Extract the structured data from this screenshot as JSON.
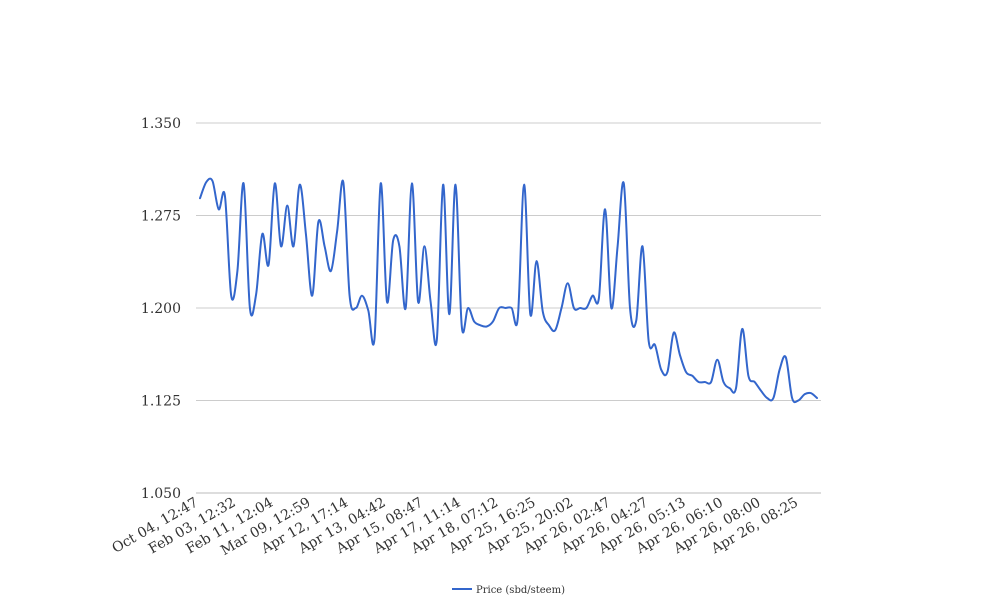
{
  "chart_data": {
    "type": "line",
    "title": "",
    "xlabel": "",
    "ylabel": "",
    "ylim": [
      1.05,
      1.35
    ],
    "yticks": [
      "1.050",
      "1.125",
      "1.200",
      "1.275",
      "1.350"
    ],
    "x_tick_labels": [
      "Oct 04, 12:47",
      "Feb 03, 12:32",
      "Feb 11, 12:04",
      "Mar 09, 12:59",
      "Apr 12, 17:14",
      "Apr 13, 04:42",
      "Apr 15, 08:47",
      "Apr 17, 11:14",
      "Apr 18, 07:12",
      "Apr 25, 16:25",
      "Apr 25, 20:02",
      "Apr 26, 02:47",
      "Apr 26, 04:27",
      "Apr 26, 05:13",
      "Apr 26, 06:10",
      "Apr 26, 08:00",
      "Apr 26, 08:25"
    ],
    "grid": true,
    "legend_position": "bottom",
    "color": "#3366cc",
    "series": [
      {
        "name": "Price (sbd/steem)",
        "values": [
          1.289,
          1.302,
          1.303,
          1.28,
          1.291,
          1.21,
          1.23,
          1.301,
          1.2,
          1.211,
          1.26,
          1.235,
          1.301,
          1.25,
          1.283,
          1.25,
          1.3,
          1.26,
          1.21,
          1.27,
          1.25,
          1.23,
          1.262,
          1.302,
          1.21,
          1.2,
          1.21,
          1.198,
          1.175,
          1.301,
          1.205,
          1.255,
          1.25,
          1.2,
          1.301,
          1.205,
          1.25,
          1.205,
          1.174,
          1.3,
          1.195,
          1.3,
          1.185,
          1.2,
          1.189,
          1.186,
          1.185,
          1.189,
          1.2,
          1.2,
          1.2,
          1.192,
          1.3,
          1.195,
          1.238,
          1.197,
          1.186,
          1.182,
          1.2,
          1.22,
          1.2,
          1.2,
          1.2,
          1.21,
          1.208,
          1.28,
          1.2,
          1.25,
          1.301,
          1.2,
          1.19,
          1.25,
          1.173,
          1.17,
          1.15,
          1.148,
          1.18,
          1.162,
          1.148,
          1.145,
          1.14,
          1.14,
          1.14,
          1.158,
          1.14,
          1.135,
          1.135,
          1.183,
          1.145,
          1.14,
          1.133,
          1.127,
          1.127,
          1.15,
          1.16,
          1.127,
          1.125,
          1.13,
          1.131,
          1.127
        ]
      }
    ]
  }
}
